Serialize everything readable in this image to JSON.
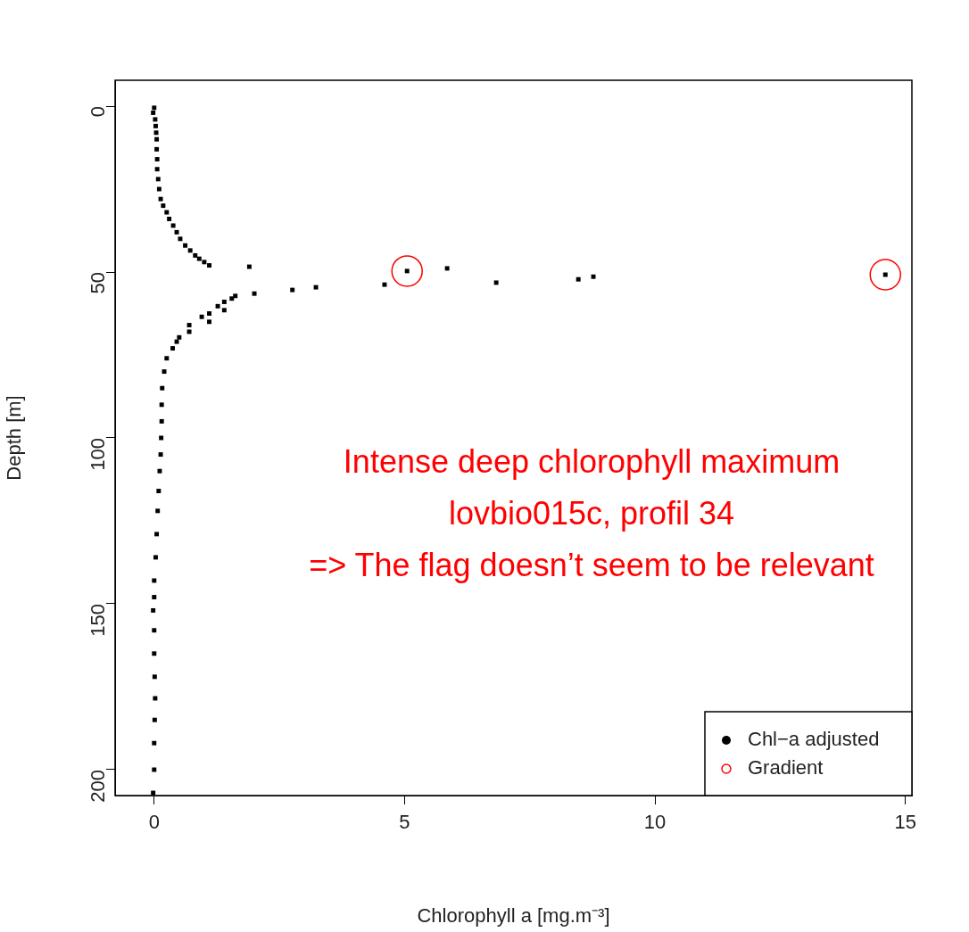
{
  "chart_data": {
    "type": "scatter",
    "xlabel": "Chlorophyll a [mg.m⁻³]",
    "ylabel": "Depth [m]",
    "xlim": [
      -0.78,
      15.13
    ],
    "ylim": [
      207.8,
      -7.8
    ],
    "xticks": [
      0,
      5,
      10,
      15
    ],
    "yticks": [
      0,
      50,
      100,
      150,
      200
    ],
    "legend": "bottom right",
    "grid": false,
    "series": [
      {
        "name": "Chl−a adjusted",
        "color": "#000000",
        "marker": "square",
        "x": [
          0.0,
          -0.02,
          0.02,
          0.03,
          0.04,
          0.05,
          0.05,
          0.06,
          0.06,
          0.08,
          0.1,
          0.13,
          0.18,
          0.25,
          0.3,
          0.38,
          0.45,
          0.52,
          0.62,
          0.72,
          0.82,
          0.9,
          1.0,
          1.1,
          1.9,
          5.85,
          5.05,
          14.6,
          8.77,
          8.47,
          6.83,
          4.6,
          3.23,
          2.76,
          2.0,
          1.62,
          1.55,
          1.4,
          1.27,
          1.4,
          1.1,
          0.95,
          1.1,
          0.7,
          0.7,
          0.5,
          0.45,
          0.37,
          0.25,
          0.2,
          0.16,
          0.15,
          0.15,
          0.14,
          0.13,
          0.11,
          0.09,
          0.07,
          0.05,
          0.03,
          0.0,
          0.0,
          -0.02,
          0.0,
          0.0,
          0.01,
          0.02,
          0.01,
          0.0,
          0.0,
          -0.02
        ],
        "values": [
          0.5,
          2,
          4,
          6,
          8,
          10,
          13,
          16,
          19,
          22,
          25,
          28,
          30,
          32,
          34,
          36,
          38,
          40,
          42,
          43.5,
          45,
          46,
          47,
          48,
          48.4,
          48.9,
          49.7,
          50.8,
          51.4,
          52.2,
          53.2,
          53.8,
          54.6,
          55.4,
          56.5,
          57.2,
          58,
          59,
          60.3,
          61.5,
          62.5,
          63.5,
          65,
          66,
          68,
          69.7,
          71,
          73,
          76,
          80,
          85,
          90,
          95,
          100,
          105,
          110,
          116,
          122,
          129,
          136,
          143,
          148,
          152,
          158,
          165,
          172,
          178.5,
          185,
          192,
          200,
          207
        ]
      },
      {
        "name": "Gradient",
        "color": "#ff0000",
        "marker": "circle",
        "x": [
          5.05,
          14.6
        ],
        "values": [
          49.7,
          50.8
        ]
      }
    ],
    "annotations": [
      "Intense deep chlorophyll maximum",
      "lovbio015c, profil 34",
      "=> The flag doesn’t seem to be relevant"
    ]
  }
}
